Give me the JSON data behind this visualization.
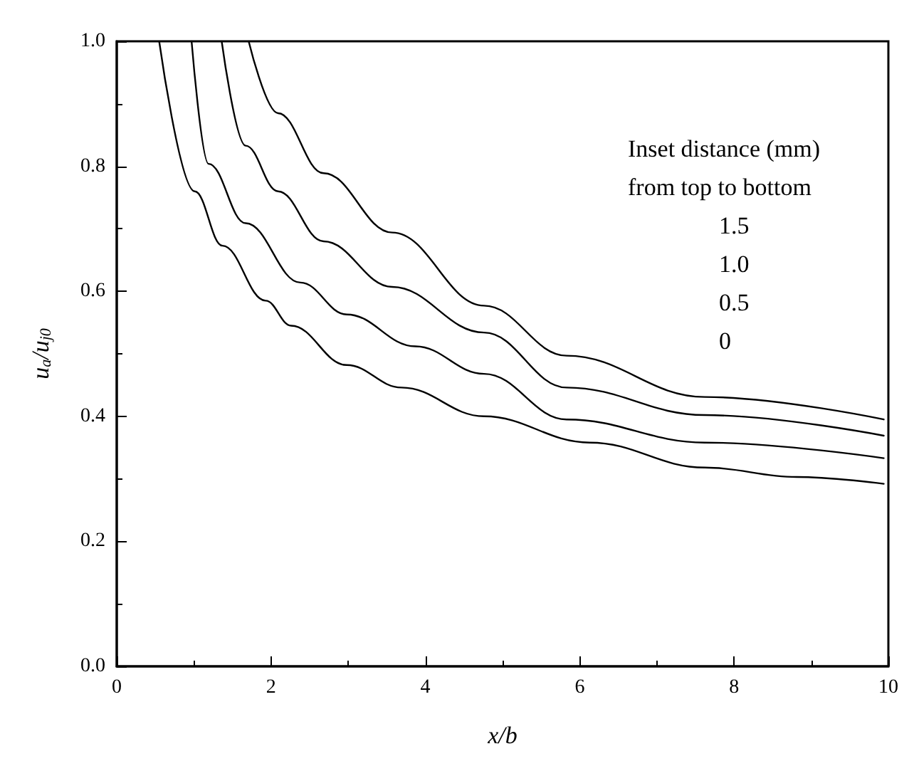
{
  "chart_data": {
    "type": "line",
    "xlabel": "x/b",
    "ylabel": "u$_{a}$/u$_{j0}$",
    "xlim": [
      0,
      10
    ],
    "xticks": [
      0,
      2,
      4,
      6,
      8,
      10
    ],
    "ylim": [
      0,
      1
    ],
    "yticks": [
      {
        "value": 0,
        "label": "0.0"
      },
      {
        "value": 0.2,
        "label": "0.2"
      },
      {
        "value": 0.4,
        "label": "0.4"
      },
      {
        "value": 0.6,
        "label": "0.6"
      },
      {
        "value": 0.8,
        "label": "0.8"
      },
      {
        "value": 1,
        "label": "1.0"
      }
    ],
    "grid": false,
    "marker": "none",
    "line_style": "solid",
    "annotations": [
      "Inset distance (mm)",
      "from top to bottom",
      "1.5",
      "1.0",
      "0.5",
      "0"
    ],
    "series": [
      {
        "color": "#000000",
        "x": [
          1.71,
          2.09,
          2.68,
          3.57,
          4.76,
          5.83,
          7.62,
          9.94
        ],
        "values": [
          1,
          0.885,
          0.789,
          0.694,
          0.577,
          0.497,
          0.431,
          0.395
        ]
      },
      {
        "color": "#000000",
        "x": [
          1.36,
          1.67,
          2.09,
          2.68,
          3.57,
          4.76,
          5.83,
          7.62,
          9.94
        ],
        "values": [
          1,
          0.833,
          0.76,
          0.68,
          0.607,
          0.534,
          0.446,
          0.402,
          0.369
        ]
      },
      {
        "color": "#000000",
        "x": [
          0.97,
          1.19,
          1.67,
          2.38,
          2.98,
          3.87,
          4.76,
          5.83,
          7.62,
          9.94
        ],
        "values": [
          1,
          0.804,
          0.709,
          0.614,
          0.563,
          0.512,
          0.468,
          0.395,
          0.358,
          0.333
        ]
      },
      {
        "color": "#000000",
        "x": [
          0.55,
          1.01,
          1.37,
          1.93,
          2.26,
          2.98,
          3.69,
          4.76,
          6.13,
          7.62,
          8.81,
          9.94
        ],
        "values": [
          1,
          0.76,
          0.673,
          0.585,
          0.545,
          0.482,
          0.446,
          0.4,
          0.358,
          0.318,
          0.303,
          0.292
        ]
      }
    ]
  }
}
